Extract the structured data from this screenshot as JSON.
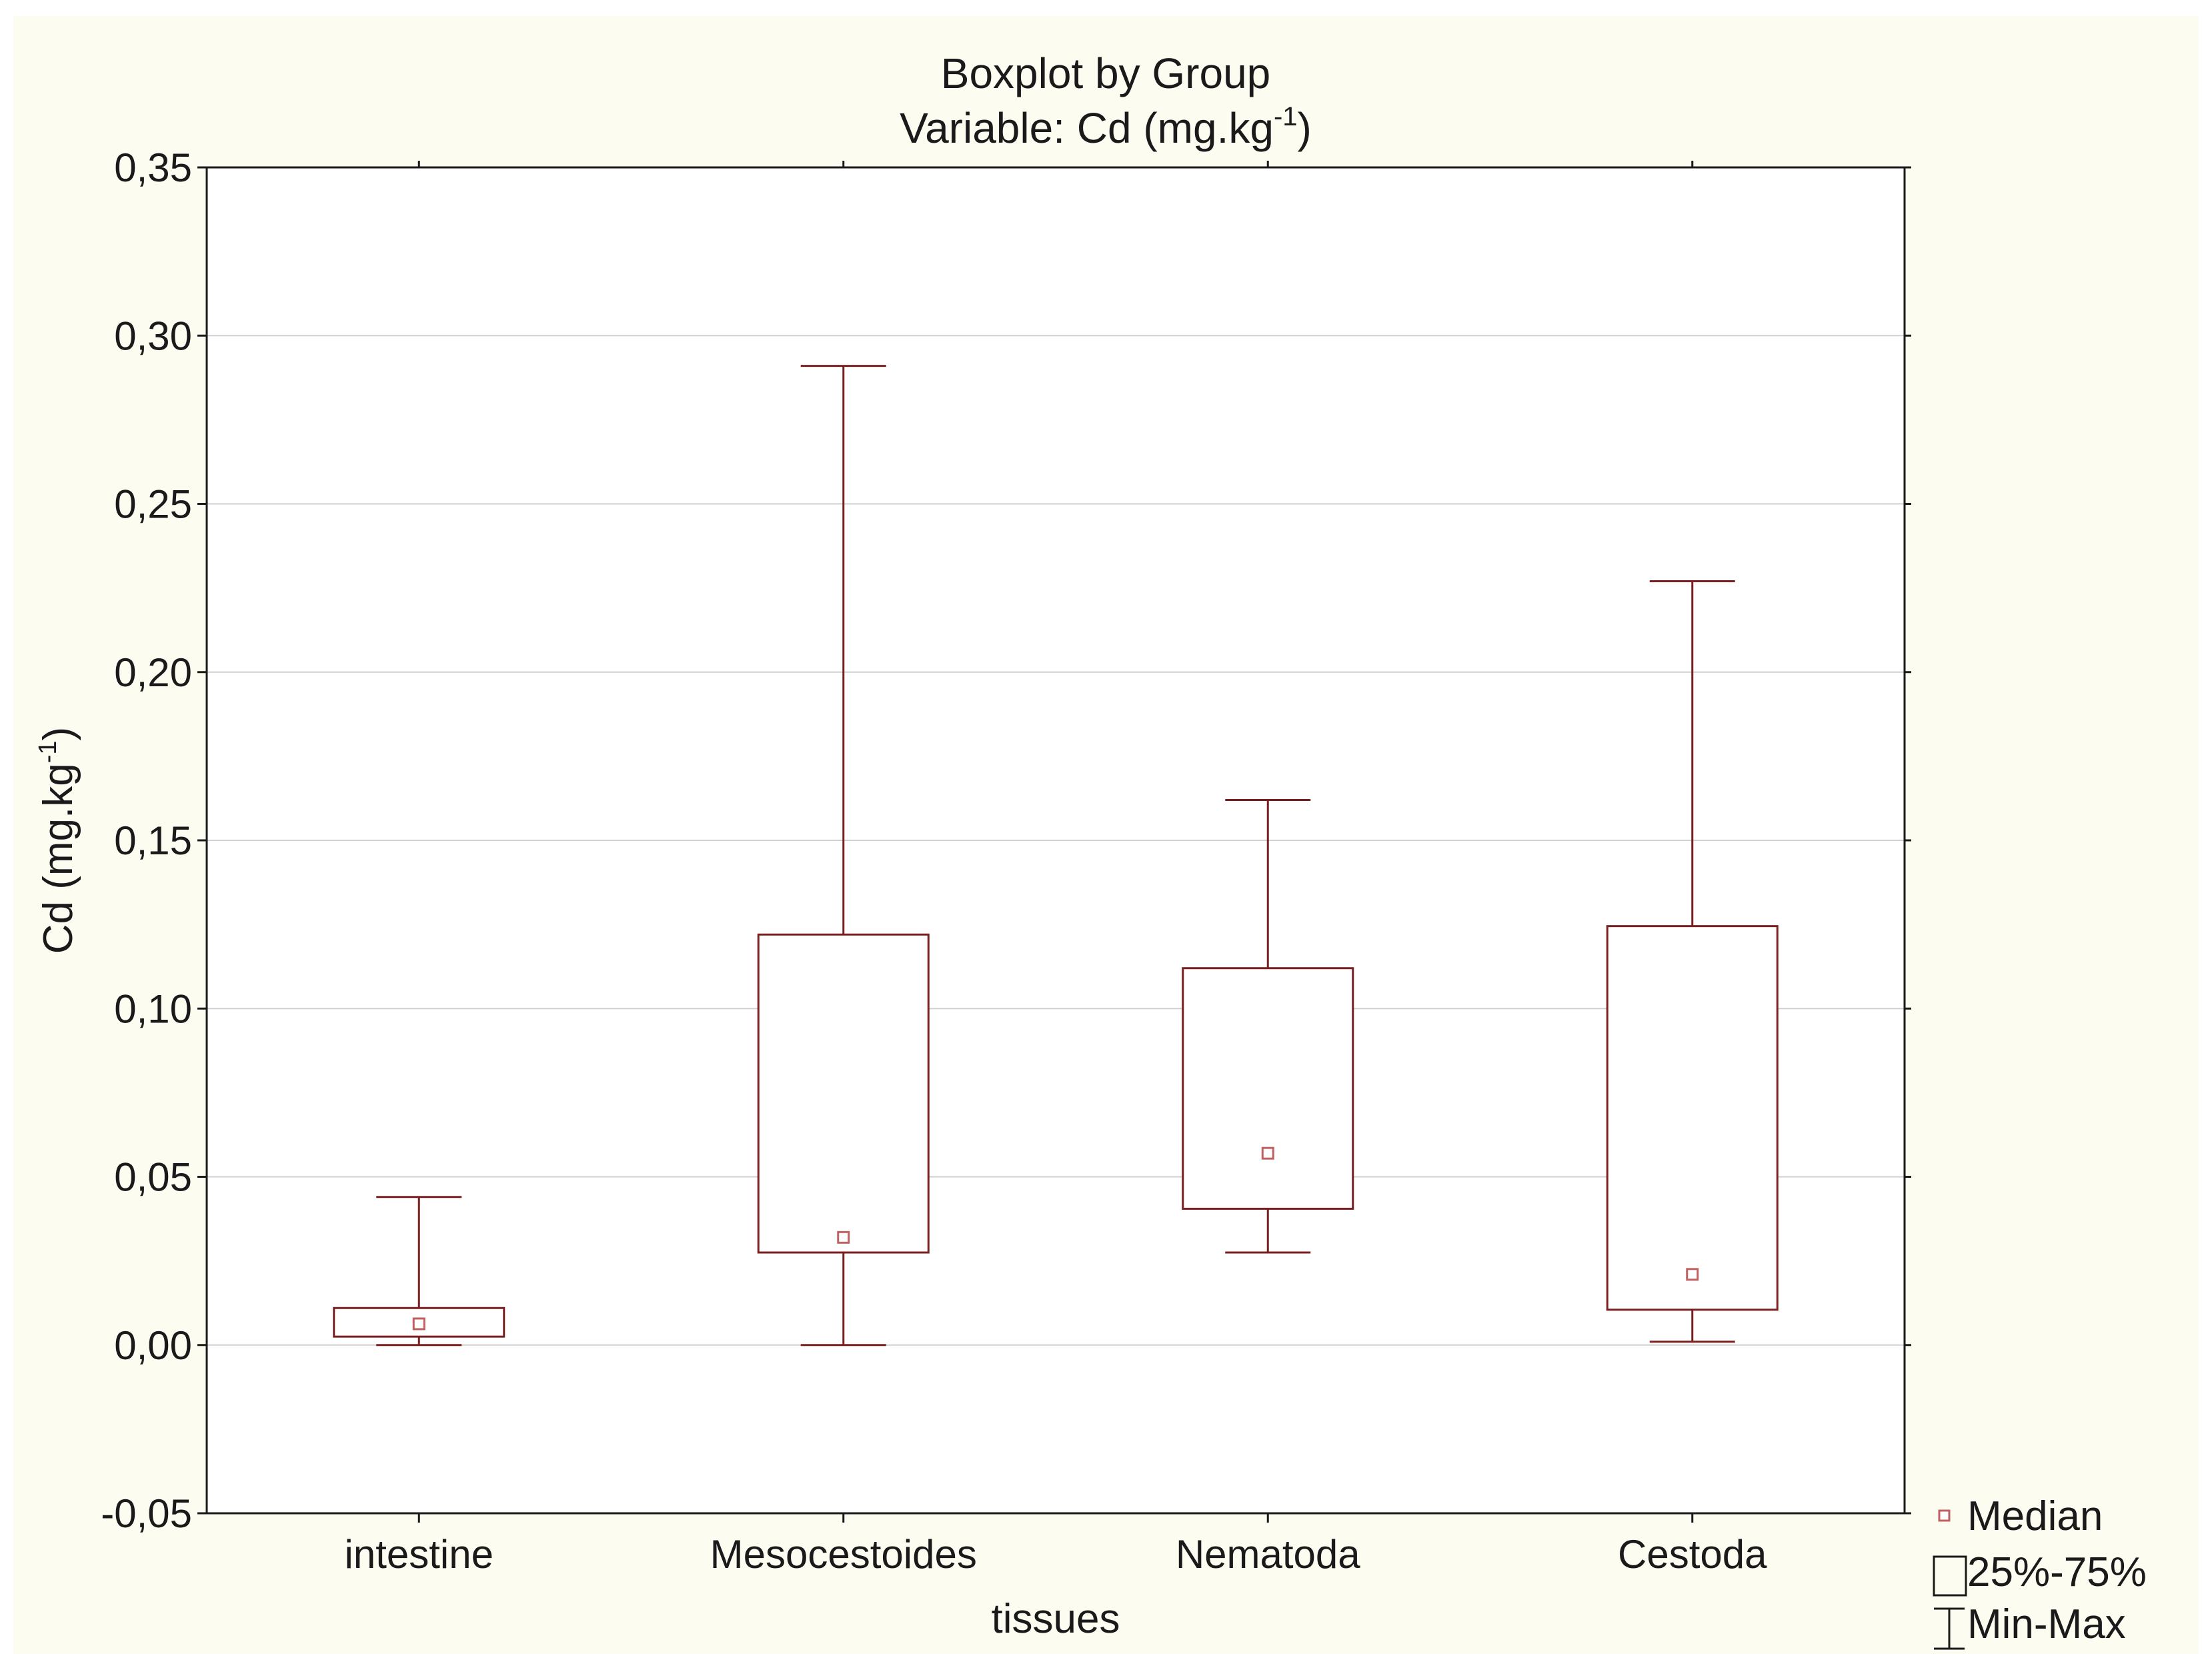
{
  "chart_data": {
    "type": "boxplot",
    "title": "Boxplot by Group",
    "subtitle_prefix": "Variable: Cd",
    "unit_base": "(mg.kg",
    "unit_exp": "-1",
    "unit_close": ")",
    "xlabel": "tissues",
    "ylabel_prefix": "Cd",
    "ylim": [
      -0.05,
      0.35
    ],
    "y_ticks": [
      -0.05,
      0.0,
      0.05,
      0.1,
      0.15,
      0.2,
      0.25,
      0.3,
      0.35
    ],
    "y_tick_labels": [
      "-0,05",
      "0,00",
      "0,05",
      "0,10",
      "0,15",
      "0,20",
      "0,25",
      "0,30",
      "0,35"
    ],
    "grid": true,
    "categories": [
      "intestine",
      "Mesocestoides",
      "Nematoda",
      "Cestoda"
    ],
    "series": [
      {
        "name": "intestine",
        "min": 0.0,
        "q1": 0.0025,
        "median": 0.0063,
        "q3": 0.011,
        "max": 0.044
      },
      {
        "name": "Mesocestoides",
        "min": 0.0,
        "q1": 0.0275,
        "median": 0.032,
        "q3": 0.122,
        "max": 0.291
      },
      {
        "name": "Nematoda",
        "min": 0.0275,
        "q1": 0.0405,
        "median": 0.057,
        "q3": 0.112,
        "max": 0.162
      },
      {
        "name": "Cestoda",
        "min": 0.001,
        "q1": 0.0105,
        "median": 0.021,
        "q3": 0.1245,
        "max": 0.227
      }
    ],
    "legend": {
      "position": "bottom-right",
      "items": [
        {
          "symbol": "median",
          "label": "Median"
        },
        {
          "symbol": "box",
          "label": "25%-75%"
        },
        {
          "symbol": "whisker",
          "label": "Min-Max"
        }
      ]
    },
    "colors": {
      "box": "#7a1f1f",
      "median": "#c06060",
      "grid": "#d0d0d0",
      "background": "#fdfcf1",
      "plot_background": "#ffffff",
      "axis": "#1a1a1a"
    }
  }
}
